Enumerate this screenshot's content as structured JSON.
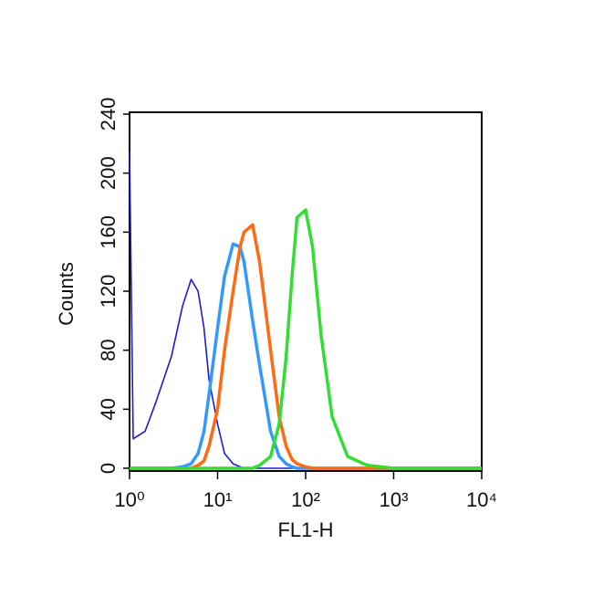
{
  "chart_data": {
    "type": "line",
    "x_label": "FL1-H",
    "y_label": "Counts",
    "xscale": "log",
    "x": [
      1,
      1.1,
      1.5,
      2,
      3,
      4,
      5,
      6,
      7,
      8,
      10,
      12,
      15,
      18,
      20,
      25,
      30,
      40,
      50,
      60,
      70,
      80,
      100,
      120,
      150,
      200,
      300,
      500,
      1000,
      10000
    ],
    "series": [
      {
        "color": "#1c1ccc",
        "values": [
          215,
          20,
          25,
          45,
          76,
          110,
          128,
          120,
          95,
          60,
          30,
          10,
          3,
          1,
          0,
          0,
          0,
          0,
          0,
          0,
          0,
          0,
          0,
          0,
          0,
          0,
          0,
          0,
          0,
          0
        ]
      },
      {
        "color": "#3399ff",
        "values": [
          0,
          0,
          0,
          0,
          0,
          1,
          3,
          10,
          25,
          50,
          95,
          130,
          152,
          150,
          140,
          100,
          70,
          25,
          8,
          3,
          1,
          0,
          0,
          0,
          0,
          0,
          0,
          0,
          0,
          0
        ]
      },
      {
        "color": "#ff6a13",
        "values": [
          0,
          0,
          0,
          0,
          0,
          0,
          0,
          2,
          5,
          15,
          40,
          80,
          120,
          150,
          160,
          165,
          140,
          80,
          35,
          15,
          6,
          3,
          1,
          0,
          0,
          0,
          0,
          0,
          0,
          0
        ]
      },
      {
        "color": "#33dd33",
        "values": [
          0,
          0,
          0,
          0,
          0,
          0,
          0,
          0,
          0,
          0,
          0,
          0,
          0,
          0,
          0,
          0,
          2,
          8,
          30,
          75,
          130,
          170,
          175,
          150,
          90,
          35,
          8,
          2,
          0,
          0
        ]
      }
    ],
    "xlim": [
      1,
      10000
    ],
    "xticks": [
      {
        "value": 1,
        "label": "10⁰"
      },
      {
        "value": 10,
        "label": "10¹"
      },
      {
        "value": 100,
        "label": "10²"
      },
      {
        "value": 1000,
        "label": "10³"
      },
      {
        "value": 10000,
        "label": "10⁴"
      }
    ],
    "ylim": [
      0,
      240
    ],
    "yticks": [
      0,
      40,
      80,
      120,
      160,
      200,
      240
    ]
  }
}
